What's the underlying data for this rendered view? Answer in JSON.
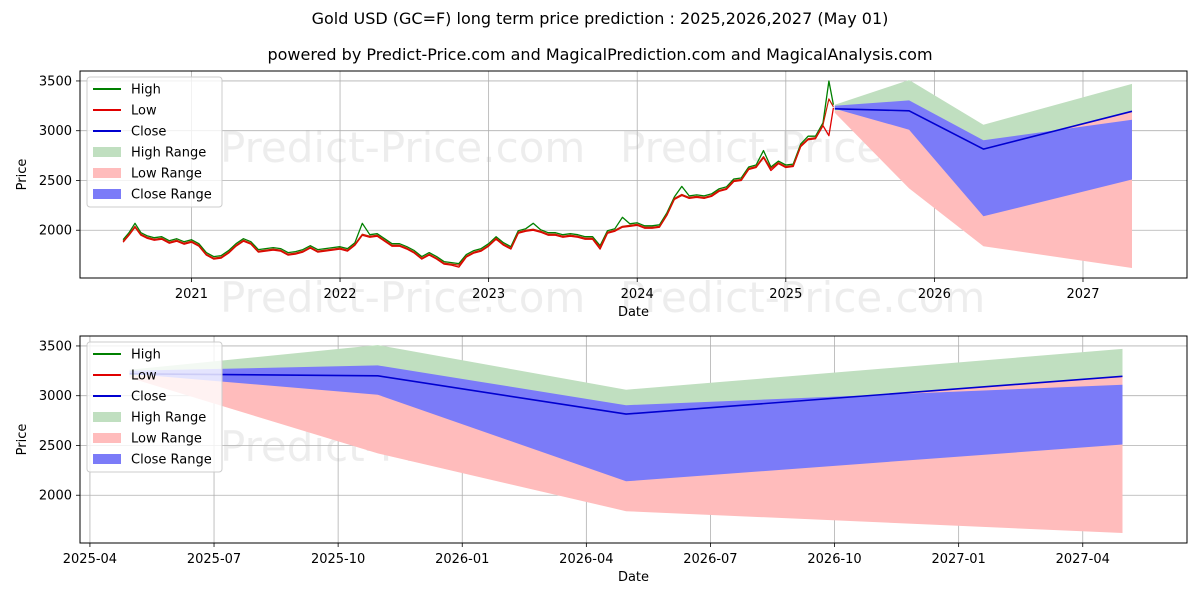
{
  "title": "Gold USD (GC=F) long term price prediction : 2025,2026,2027 (May 01)",
  "subtitle": "powered by Predict-Price.com and MagicalPrediction.com and MagicalAnalysis.com",
  "watermark": "Predict-Price.com",
  "colors": {
    "high": "#008000",
    "low": "#e00000",
    "close": "#0000d0",
    "high_range": "#c0dfc0",
    "low_range": "#ffbcbc",
    "close_range": "#7b7bf8"
  },
  "chart_data": [
    {
      "type": "line",
      "xlabel": "Date",
      "ylabel": "Price",
      "ylim": [
        1520,
        3600
      ],
      "xlim": [
        2020.25,
        2027.7
      ],
      "grid": true,
      "legend_position": "top-left",
      "xticks": [
        2021,
        2022,
        2023,
        2024,
        2025,
        2026,
        2027
      ],
      "xtick_labels": [
        "2021",
        "2022",
        "2023",
        "2024",
        "2025",
        "2026",
        "2027"
      ],
      "yticks": [
        2000,
        2500,
        3000,
        3500
      ],
      "history_x": [
        2020.54,
        2020.58,
        2020.62,
        2020.66,
        2020.7,
        2020.75,
        2020.8,
        2020.85,
        2020.9,
        2020.95,
        2021.0,
        2021.05,
        2021.1,
        2021.15,
        2021.2,
        2021.25,
        2021.3,
        2021.35,
        2021.4,
        2021.45,
        2021.5,
        2021.55,
        2021.6,
        2021.65,
        2021.7,
        2021.75,
        2021.8,
        2021.85,
        2021.9,
        2021.95,
        2022.0,
        2022.05,
        2022.1,
        2022.15,
        2022.2,
        2022.25,
        2022.3,
        2022.35,
        2022.4,
        2022.45,
        2022.5,
        2022.55,
        2022.6,
        2022.65,
        2022.7,
        2022.75,
        2022.8,
        2022.85,
        2022.9,
        2022.95,
        2023.0,
        2023.05,
        2023.1,
        2023.15,
        2023.2,
        2023.25,
        2023.3,
        2023.35,
        2023.4,
        2023.45,
        2023.5,
        2023.55,
        2023.6,
        2023.65,
        2023.7,
        2023.75,
        2023.8,
        2023.85,
        2023.9,
        2023.95,
        2024.0,
        2024.05,
        2024.1,
        2024.15,
        2024.2,
        2024.25,
        2024.3,
        2024.35,
        2024.4,
        2024.45,
        2024.5,
        2024.55,
        2024.6,
        2024.65,
        2024.7,
        2024.75,
        2024.8,
        2024.85,
        2024.9,
        2024.95,
        2025.0,
        2025.05,
        2025.1,
        2025.15,
        2025.2,
        2025.25,
        2025.29,
        2025.32
      ],
      "history_close": [
        1890,
        1960,
        2040,
        1960,
        1930,
        1910,
        1920,
        1880,
        1900,
        1870,
        1890,
        1850,
        1760,
        1720,
        1730,
        1780,
        1850,
        1900,
        1870,
        1790,
        1800,
        1810,
        1800,
        1760,
        1770,
        1790,
        1830,
        1790,
        1800,
        1810,
        1820,
        1800,
        1860,
        1960,
        1940,
        1950,
        1900,
        1850,
        1850,
        1820,
        1780,
        1720,
        1760,
        1720,
        1670,
        1660,
        1650,
        1740,
        1780,
        1800,
        1850,
        1920,
        1860,
        1820,
        1980,
        2000,
        2010,
        1990,
        1960,
        1960,
        1940,
        1950,
        1940,
        1920,
        1920,
        1830,
        1980,
        2000,
        2040,
        2050,
        2060,
        2030,
        2030,
        2040,
        2160,
        2320,
        2360,
        2330,
        2340,
        2330,
        2350,
        2400,
        2420,
        2500,
        2510,
        2620,
        2640,
        2740,
        2620,
        2680,
        2640,
        2650,
        2850,
        2920,
        2930,
        3060,
        3320,
        3240
      ],
      "history_high": [
        1905,
        1975,
        2070,
        1975,
        1945,
        1925,
        1935,
        1895,
        1915,
        1885,
        1905,
        1865,
        1775,
        1735,
        1745,
        1795,
        1865,
        1915,
        1885,
        1805,
        1815,
        1825,
        1815,
        1775,
        1785,
        1805,
        1845,
        1805,
        1815,
        1825,
        1835,
        1815,
        1875,
        2070,
        1955,
        1965,
        1915,
        1865,
        1865,
        1835,
        1795,
        1735,
        1775,
        1735,
        1685,
        1675,
        1665,
        1755,
        1795,
        1815,
        1865,
        1935,
        1875,
        1835,
        1995,
        2015,
        2070,
        2005,
        1975,
        1975,
        1955,
        1965,
        1955,
        1935,
        1935,
        1845,
        1995,
        2015,
        2130,
        2065,
        2075,
        2045,
        2045,
        2055,
        2175,
        2335,
        2440,
        2345,
        2355,
        2345,
        2365,
        2415,
        2435,
        2515,
        2525,
        2635,
        2655,
        2800,
        2635,
        2695,
        2655,
        2665,
        2865,
        2945,
        2945,
        3080,
        3500,
        3260
      ],
      "history_low": [
        1880,
        1950,
        2030,
        1950,
        1920,
        1900,
        1910,
        1870,
        1890,
        1860,
        1880,
        1840,
        1750,
        1710,
        1720,
        1770,
        1840,
        1890,
        1860,
        1780,
        1790,
        1800,
        1790,
        1750,
        1760,
        1780,
        1820,
        1780,
        1790,
        1800,
        1810,
        1790,
        1850,
        1950,
        1930,
        1940,
        1890,
        1840,
        1840,
        1810,
        1770,
        1710,
        1750,
        1710,
        1660,
        1650,
        1630,
        1730,
        1770,
        1790,
        1840,
        1910,
        1850,
        1810,
        1970,
        1990,
        2000,
        1980,
        1950,
        1950,
        1930,
        1940,
        1930,
        1910,
        1910,
        1810,
        1970,
        1990,
        2030,
        2040,
        2050,
        2020,
        2020,
        2030,
        2150,
        2310,
        2350,
        2320,
        2330,
        2320,
        2340,
        2390,
        2410,
        2490,
        2500,
        2610,
        2630,
        2730,
        2600,
        2670,
        2630,
        2640,
        2840,
        2910,
        2920,
        3050,
        2950,
        3230
      ],
      "forecast_x": [
        2025.33,
        2025.83,
        2026.33,
        2027.33
      ],
      "close_forecast": [
        3220,
        3200,
        2815,
        3195
      ],
      "high_range_upper": [
        3260,
        3510,
        3060,
        3470
      ],
      "high_range_lower": [
        3200,
        3200,
        2815,
        3195
      ],
      "close_range_upper": [
        3250,
        3305,
        2905,
        3110
      ],
      "close_range_lower": [
        3220,
        3010,
        2140,
        2510
      ],
      "low_range_upper": [
        3200,
        3200,
        2815,
        3195
      ],
      "low_range_lower": [
        3180,
        2420,
        1840,
        1620
      ]
    },
    {
      "type": "line",
      "xlabel": "Date",
      "ylabel": "Price",
      "ylim": [
        1520,
        3600
      ],
      "xlim": [
        2025.23,
        2027.46
      ],
      "grid": true,
      "legend_position": "top-left",
      "xticks": [
        2025.25,
        2025.5,
        2025.75,
        2026.0,
        2026.25,
        2026.5,
        2026.75,
        2027.0,
        2027.25
      ],
      "xtick_labels": [
        "2025-04",
        "2025-07",
        "2025-10",
        "2026-01",
        "2026-04",
        "2026-07",
        "2026-10",
        "2027-01",
        "2027-04"
      ],
      "yticks": [
        2000,
        2500,
        3000,
        3500
      ],
      "forecast_x": [
        2025.33,
        2025.83,
        2026.33,
        2027.33
      ],
      "close_forecast": [
        3220,
        3200,
        2815,
        3195
      ],
      "high_range_upper": [
        3260,
        3510,
        3060,
        3470
      ],
      "high_range_lower": [
        3200,
        3200,
        2815,
        3195
      ],
      "close_range_upper": [
        3250,
        3305,
        2905,
        3110
      ],
      "close_range_lower": [
        3220,
        3010,
        2140,
        2510
      ],
      "low_range_upper": [
        3200,
        3200,
        2815,
        3195
      ],
      "low_range_lower": [
        3180,
        2420,
        1840,
        1620
      ]
    }
  ],
  "legend": [
    "High",
    "Low",
    "Close",
    "High Range",
    "Low Range",
    "Close Range"
  ]
}
